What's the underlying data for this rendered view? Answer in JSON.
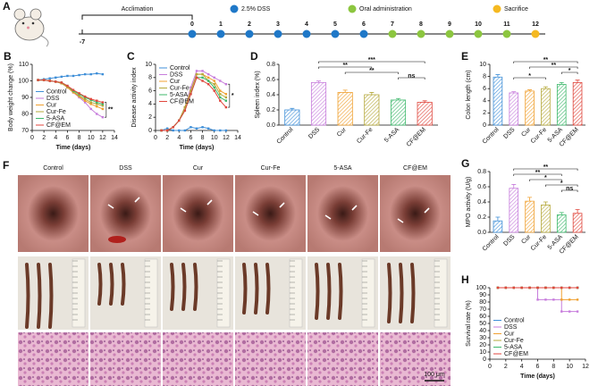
{
  "timeline": {
    "panel": "A",
    "start": "-7",
    "segment_label": "Acclimation",
    "days": [
      {
        "label": "0",
        "color": "#1f78c8"
      },
      {
        "label": "1",
        "color": "#1f78c8"
      },
      {
        "label": "2",
        "color": "#1f78c8"
      },
      {
        "label": "3",
        "color": "#1f78c8"
      },
      {
        "label": "4",
        "color": "#1f78c8"
      },
      {
        "label": "5",
        "color": "#1f78c8"
      },
      {
        "label": "6",
        "color": "#1f78c8"
      },
      {
        "label": "7",
        "color": "#8cc63f"
      },
      {
        "label": "8",
        "color": "#8cc63f"
      },
      {
        "label": "9",
        "color": "#8cc63f"
      },
      {
        "label": "10",
        "color": "#8cc63f"
      },
      {
        "label": "11",
        "color": "#8cc63f"
      },
      {
        "label": "12",
        "color": "#f5b921"
      }
    ],
    "legend": [
      {
        "label": "2.5% DSS",
        "color": "#1f78c8"
      },
      {
        "label": "Oral administration",
        "color": "#8cc63f"
      },
      {
        "label": "Sacrifice",
        "color": "#f5b921"
      }
    ]
  },
  "images": {
    "panel": "F",
    "columns": [
      "Control",
      "DSS",
      "Cur",
      "Cur-Fe",
      "5-ASA",
      "CF@EM"
    ],
    "scale_bar": "100 μm"
  },
  "chart_data": [
    {
      "panel": "B",
      "type": "line",
      "xlabel": "Time (days)",
      "ylabel": "Body weight change (%)",
      "x": [
        1,
        2,
        3,
        4,
        5,
        6,
        7,
        8,
        9,
        10,
        11,
        12
      ],
      "xlim": [
        0,
        14
      ],
      "xticks": [
        0,
        2,
        4,
        6,
        8,
        10,
        12,
        14
      ],
      "ylim": [
        70,
        110
      ],
      "yticks": [
        70,
        80,
        90,
        100,
        110
      ],
      "legend": "lower left",
      "annotation": "**",
      "series": [
        {
          "name": "Control",
          "color": "#3f8fd8",
          "values": [
            100.5,
            101,
            101.5,
            102,
            102.5,
            103,
            103,
            103.5,
            104,
            104,
            104.5,
            104
          ]
        },
        {
          "name": "DSS",
          "color": "#c77ddc",
          "values": [
            100.5,
            100.5,
            100,
            99.5,
            98.5,
            96,
            93,
            90,
            87,
            83,
            80,
            78
          ]
        },
        {
          "name": "Cur",
          "color": "#f0a030",
          "values": [
            100.5,
            100.5,
            100,
            99.5,
            98.5,
            96,
            93,
            90.5,
            88,
            86,
            84.5,
            83
          ]
        },
        {
          "name": "Cur-Fe",
          "color": "#b5a83a",
          "values": [
            100.5,
            100.5,
            100,
            99.5,
            98.5,
            96.5,
            93.5,
            91,
            89,
            87,
            86,
            85
          ]
        },
        {
          "name": "5-ASA",
          "color": "#3db86b",
          "values": [
            100.5,
            100.5,
            100,
            99.5,
            99,
            97,
            94,
            92,
            90,
            88.5,
            87,
            86
          ]
        },
        {
          "name": "CF@EM",
          "color": "#e0463c",
          "values": [
            100.5,
            100.5,
            100,
            99.5,
            99,
            97,
            94.5,
            92.5,
            90.5,
            89,
            88,
            87
          ]
        }
      ]
    },
    {
      "panel": "C",
      "type": "line",
      "xlabel": "Time (days)",
      "ylabel": "Disease activity index",
      "x": [
        1,
        2,
        3,
        4,
        5,
        6,
        7,
        8,
        9,
        10,
        11,
        12
      ],
      "xlim": [
        0,
        14
      ],
      "xticks": [
        0,
        2,
        4,
        6,
        8,
        10,
        12,
        14
      ],
      "ylim": [
        0,
        10
      ],
      "yticks": [
        0,
        2,
        4,
        6,
        8,
        10
      ],
      "legend": "upper left",
      "annotation": "*",
      "series": [
        {
          "name": "Control",
          "color": "#3f8fd8",
          "values": [
            0,
            0.3,
            0,
            0,
            0,
            0.5,
            0.3,
            0.5,
            0.3,
            0,
            0,
            0
          ]
        },
        {
          "name": "DSS",
          "color": "#c77ddc",
          "values": [
            0,
            0,
            0.5,
            1.5,
            3.5,
            6.5,
            9,
            9,
            8.5,
            8,
            7.5,
            7
          ]
        },
        {
          "name": "Cur",
          "color": "#f0a030",
          "values": [
            0,
            0,
            0.5,
            1.5,
            3.5,
            6,
            8.5,
            8.5,
            8,
            7.5,
            6,
            5.5
          ]
        },
        {
          "name": "Cur-Fe",
          "color": "#b5a83a",
          "values": [
            0,
            0,
            0.5,
            1.5,
            3.5,
            6,
            8.5,
            8.5,
            7.5,
            7,
            5.5,
            5
          ]
        },
        {
          "name": "5-ASA",
          "color": "#3db86b",
          "values": [
            0,
            0,
            0.5,
            1.5,
            3,
            5.5,
            8,
            8,
            7.5,
            6.5,
            5,
            4.5
          ]
        },
        {
          "name": "CF@EM",
          "color": "#e0463c",
          "values": [
            0,
            0,
            0.5,
            1.5,
            3,
            5.5,
            8,
            7.5,
            7,
            6,
            4.5,
            3.5
          ]
        }
      ]
    },
    {
      "panel": "D",
      "type": "bar",
      "ylabel": "Spleen index (%)",
      "categories": [
        "Control",
        "DSS",
        "Cur",
        "Cur-Fe",
        "5-ASA",
        "CF@EM"
      ],
      "values": [
        0.2,
        0.56,
        0.43,
        0.4,
        0.33,
        0.3
      ],
      "errors": [
        0.02,
        0.02,
        0.03,
        0.03,
        0.02,
        0.02
      ],
      "colors": [
        "#3f8fd8",
        "#c77ddc",
        "#f0a030",
        "#b5a83a",
        "#3db86b",
        "#e0463c"
      ],
      "ylim": [
        0,
        0.8
      ],
      "yticks": [
        {
          "value": 0,
          "label": "0.0"
        },
        0.2,
        0.4,
        0.6,
        0.8
      ],
      "significance": [
        {
          "pair": [
            "DSS",
            "CF@EM"
          ],
          "label": "***"
        },
        {
          "pair": [
            "DSS",
            "Cur-Fe"
          ],
          "label": "**"
        },
        {
          "pair": [
            "Cur",
            "5-ASA"
          ],
          "label": "**"
        },
        {
          "pair": [
            "5-ASA",
            "CF@EM"
          ],
          "label": "ns"
        }
      ]
    },
    {
      "panel": "E",
      "type": "bar",
      "ylabel": "Colon length (cm)",
      "categories": [
        "Control",
        "DSS",
        "Cur",
        "Cur-Fe",
        "5-ASA",
        "CF@EM"
      ],
      "values": [
        7.9,
        5.3,
        5.6,
        6.0,
        6.7,
        7.0
      ],
      "errors": [
        0.4,
        0.2,
        0.2,
        0.3,
        0.3,
        0.4
      ],
      "colors": [
        "#3f8fd8",
        "#c77ddc",
        "#f0a030",
        "#b5a83a",
        "#3db86b",
        "#e0463c"
      ],
      "ylim": [
        0,
        10
      ],
      "yticks": [
        0,
        2,
        4,
        6,
        8,
        10
      ],
      "significance": [
        {
          "pair": [
            "DSS",
            "CF@EM"
          ],
          "label": "**"
        },
        {
          "pair": [
            "Cur",
            "CF@EM"
          ],
          "label": "**"
        },
        {
          "pair": [
            "5-ASA",
            "CF@EM"
          ],
          "label": "*"
        },
        {
          "pair": [
            "DSS",
            "Cur-Fe"
          ],
          "label": "*"
        }
      ]
    },
    {
      "panel": "G",
      "type": "bar",
      "ylabel": "MPO activity (U/g)",
      "categories": [
        "Control",
        "DSS",
        "Cur",
        "Cur-Fe",
        "5-ASA",
        "CF@EM"
      ],
      "values": [
        0.15,
        0.58,
        0.41,
        0.36,
        0.23,
        0.25
      ],
      "errors": [
        0.05,
        0.05,
        0.05,
        0.04,
        0.03,
        0.05
      ],
      "colors": [
        "#3f8fd8",
        "#c77ddc",
        "#f0a030",
        "#b5a83a",
        "#3db86b",
        "#e0463c"
      ],
      "ylim": [
        0,
        0.8
      ],
      "yticks": [
        {
          "value": 0,
          "label": "0.0"
        },
        0.2,
        0.4,
        0.6,
        0.8
      ],
      "significance": [
        {
          "pair": [
            "DSS",
            "CF@EM"
          ],
          "label": "**"
        },
        {
          "pair": [
            "DSS",
            "5-ASA"
          ],
          "label": "**"
        },
        {
          "pair": [
            "Cur",
            "5-ASA"
          ],
          "label": "*"
        },
        {
          "pair": [
            "Cur-Fe",
            "CF@EM"
          ],
          "label": "*"
        },
        {
          "pair": [
            "5-ASA",
            "CF@EM"
          ],
          "label": "ns"
        }
      ]
    },
    {
      "panel": "H",
      "type": "step",
      "xlabel": "Time (days)",
      "ylabel": "Survival rate (%)",
      "x": [
        1,
        2,
        3,
        4,
        5,
        6,
        7,
        8,
        9,
        10,
        11
      ],
      "xlim": [
        0,
        12
      ],
      "xticks": [
        0,
        2,
        4,
        6,
        8,
        10,
        12
      ],
      "ylim": [
        0,
        100
      ],
      "yticks": [
        0,
        10,
        20,
        30,
        40,
        50,
        60,
        70,
        80,
        90,
        100
      ],
      "legend": "lower left",
      "series": [
        {
          "name": "Control",
          "color": "#3f8fd8",
          "values": [
            100,
            100,
            100,
            100,
            100,
            100,
            100,
            100,
            100,
            100,
            100
          ]
        },
        {
          "name": "DSS",
          "color": "#c77ddc",
          "values": [
            100,
            100,
            100,
            100,
            100,
            83.3,
            83.3,
            83.3,
            66.7,
            66.7,
            66.7
          ]
        },
        {
          "name": "Cur",
          "color": "#f0a030",
          "values": [
            100,
            100,
            100,
            100,
            100,
            100,
            100,
            100,
            83.3,
            83.3,
            83.3
          ]
        },
        {
          "name": "Cur-Fe",
          "color": "#b5a83a",
          "values": [
            100,
            100,
            100,
            100,
            100,
            100,
            100,
            100,
            100,
            100,
            100
          ]
        },
        {
          "name": "5-ASA",
          "color": "#3db86b",
          "values": [
            100,
            100,
            100,
            100,
            100,
            100,
            100,
            100,
            100,
            100,
            100
          ]
        },
        {
          "name": "CF@EM",
          "color": "#e0463c",
          "values": [
            100,
            100,
            100,
            100,
            100,
            100,
            100,
            100,
            100,
            100,
            100
          ]
        }
      ]
    }
  ]
}
